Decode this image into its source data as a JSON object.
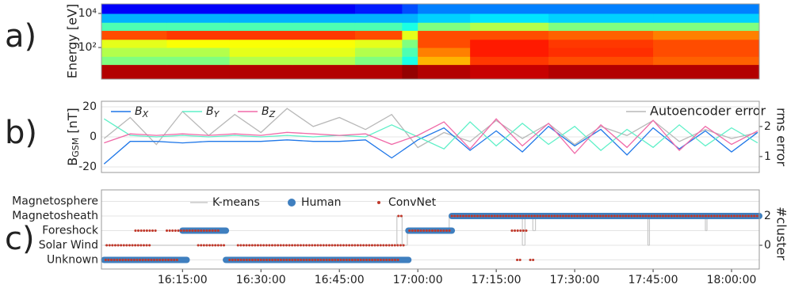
{
  "chart_data": [
    {
      "type": "heatmap",
      "panel_label": "a)",
      "ylabel": "Energy [eV]",
      "xlim": [
        959.5,
        1085.3
      ],
      "ylim": [
        1.4,
        36000
      ],
      "yscale": "log",
      "yticks": [
        {
          "value": 100,
          "label": "10²"
        },
        {
          "value": 10000,
          "label": "10⁴"
        }
      ],
      "colormap": "jet",
      "x_edges": [
        959.5,
        972,
        984,
        996,
        1008,
        1017,
        1020,
        1030,
        1045,
        1065,
        1085.3
      ],
      "y_edges": [
        1.4,
        10,
        30,
        100,
        300,
        1000,
        3000,
        10000,
        36000
      ],
      "z": [
        [
          0.95,
          0.95,
          0.95,
          0.95,
          0.95,
          0.98,
          0.95,
          0.93,
          0.95,
          0.95
        ],
        [
          0.5,
          0.5,
          0.55,
          0.55,
          0.5,
          0.4,
          0.7,
          0.82,
          0.8,
          0.78
        ],
        [
          0.55,
          0.55,
          0.6,
          0.6,
          0.55,
          0.45,
          0.75,
          0.85,
          0.83,
          0.8
        ],
        [
          0.6,
          0.62,
          0.62,
          0.62,
          0.6,
          0.5,
          0.8,
          0.85,
          0.82,
          0.8
        ],
        [
          0.8,
          0.82,
          0.82,
          0.82,
          0.8,
          0.6,
          0.8,
          0.8,
          0.78,
          0.75
        ],
        [
          0.45,
          0.45,
          0.45,
          0.45,
          0.45,
          0.4,
          0.5,
          0.55,
          0.5,
          0.5
        ],
        [
          0.3,
          0.3,
          0.3,
          0.3,
          0.3,
          0.3,
          0.33,
          0.35,
          0.33,
          0.33
        ],
        [
          0.12,
          0.12,
          0.12,
          0.12,
          0.15,
          0.2,
          0.25,
          0.25,
          0.25,
          0.25
        ]
      ]
    },
    {
      "type": "line",
      "panel_label": "b)",
      "ylabel": "BGSM [nT]",
      "y2label": "rms error",
      "xlim": [
        959.5,
        1085.3
      ],
      "ylim": [
        -23.7,
        23.7
      ],
      "yticks": [
        -20,
        0,
        20
      ],
      "y2lim": [
        0.47,
        2.84
      ],
      "y2ticks": [
        1,
        2
      ],
      "x": [
        960,
        965,
        970,
        975,
        980,
        985,
        990,
        995,
        1000,
        1005,
        1010,
        1015,
        1020,
        1025,
        1030,
        1035,
        1040,
        1045,
        1050,
        1055,
        1060,
        1065,
        1070,
        1075,
        1080,
        1085
      ],
      "series": [
        {
          "name": "BX",
          "color": "#1f77e8",
          "values": [
            -18,
            -3,
            -3,
            -4,
            -3,
            -3,
            -3,
            -2,
            -3,
            -3,
            -2,
            -14,
            -2,
            6,
            -9,
            4,
            -10,
            7,
            -6,
            5,
            -12,
            6,
            -8,
            4,
            -10,
            3
          ]
        },
        {
          "name": "BY",
          "color": "#5ff0c8",
          "values": [
            12,
            1,
            0,
            1,
            0,
            1,
            0,
            1,
            0,
            1,
            0,
            8,
            0,
            -8,
            10,
            -6,
            9,
            -5,
            7,
            -9,
            5,
            -7,
            8,
            -6,
            6,
            -4
          ]
        },
        {
          "name": "BZ",
          "color": "#f06aa8",
          "values": [
            -4,
            2,
            1,
            2,
            1,
            2,
            1,
            3,
            2,
            1,
            2,
            -5,
            1,
            10,
            -8,
            12,
            -6,
            9,
            -11,
            8,
            -7,
            11,
            -9,
            7,
            -5,
            4
          ]
        },
        {
          "name": "Autoencoder error",
          "color": "#b8b8b8",
          "axis": "y2",
          "values": [
            1.6,
            2.3,
            1.4,
            2.5,
            1.7,
            2.4,
            1.8,
            2.6,
            2.0,
            2.3,
            1.9,
            2.4,
            1.3,
            1.8,
            1.5,
            2.2,
            1.6,
            2.1,
            1.4,
            2.0,
            1.7,
            2.2,
            1.5,
            1.9,
            1.6,
            1.8
          ]
        }
      ]
    },
    {
      "type": "segments",
      "panel_label": "c)",
      "y2label": "#cluster",
      "grid": true,
      "categories": [
        "Unknown",
        "Solar Wind",
        "Foreshock",
        "Magnetosheath",
        "Magnetosphere"
      ],
      "xlim": [
        959.5,
        1085.3
      ],
      "xticks": [
        {
          "value": 975,
          "label": "16:15:00"
        },
        {
          "value": 990,
          "label": "16:30:00"
        },
        {
          "value": 1005,
          "label": "16:45:00"
        },
        {
          "value": 1020,
          "label": "17:00:00"
        },
        {
          "value": 1035,
          "label": "17:15:00"
        },
        {
          "value": 1050,
          "label": "17:30:00"
        },
        {
          "value": 1065,
          "label": "17:45:00"
        },
        {
          "value": 1080,
          "label": "18:00:00"
        }
      ],
      "y2lim": [
        -1.62,
        3.78
      ],
      "y2ticks": [
        0,
        2
      ],
      "kmeans": {
        "name": "K-means",
        "color": "#c8c8c8",
        "x": [
          960,
          1016,
          1017,
          1018,
          1026,
          1040,
          1040.5,
          1042,
          1042.5,
          1064,
          1064.3,
          1075,
          1075.3,
          1085.3
        ],
        "values": [
          0,
          2,
          0,
          1,
          2,
          0,
          2,
          1,
          2,
          0,
          2,
          1,
          2,
          2
        ]
      },
      "series": [
        {
          "name": "Human",
          "color": "#3f7fbf",
          "segments": [
            {
              "start": 960,
              "end": 975.8,
              "category": "Unknown"
            },
            {
              "start": 975,
              "end": 983.3,
              "category": "Foreshock"
            },
            {
              "start": 983.3,
              "end": 1018.2,
              "category": "Unknown"
            },
            {
              "start": 1018.2,
              "end": 1026.5,
              "category": "Foreshock"
            },
            {
              "start": 1026.5,
              "end": 1085.3,
              "category": "Magnetosheath"
            }
          ]
        },
        {
          "name": "ConvNet",
          "color": "#c0392b",
          "segments": [
            {
              "start": 960.3,
              "end": 974,
              "category": "Unknown"
            },
            {
              "start": 960.5,
              "end": 969,
              "category": "Solar Wind"
            },
            {
              "start": 966,
              "end": 970,
              "category": "Foreshock"
            },
            {
              "start": 972,
              "end": 982,
              "category": "Foreshock"
            },
            {
              "start": 978,
              "end": 983,
              "category": "Solar Wind"
            },
            {
              "start": 984,
              "end": 1016.5,
              "category": "Unknown"
            },
            {
              "start": 985.6,
              "end": 1017.4,
              "category": "Solar Wind"
            },
            {
              "start": 1016.3,
              "end": 1017,
              "category": "Magnetosheath"
            },
            {
              "start": 1018.4,
              "end": 1026.5,
              "category": "Foreshock"
            },
            {
              "start": 1026.5,
              "end": 1085.3,
              "category": "Magnetosheath"
            },
            {
              "start": 1038,
              "end": 1041,
              "category": "Foreshock"
            },
            {
              "start": 1039,
              "end": 1040,
              "category": "Unknown"
            },
            {
              "start": 1041.5,
              "end": 1042.5,
              "category": "Unknown"
            }
          ]
        }
      ]
    }
  ]
}
